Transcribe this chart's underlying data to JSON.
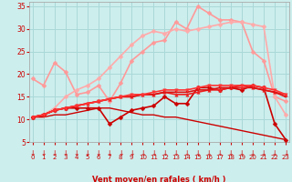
{
  "title": "",
  "xlabel": "Vent moyen/en rafales ( km/h )",
  "xlim": [
    0,
    23
  ],
  "ylim": [
    5,
    36
  ],
  "yticks": [
    5,
    10,
    15,
    20,
    25,
    30,
    35
  ],
  "xticks": [
    0,
    1,
    2,
    3,
    4,
    5,
    6,
    7,
    8,
    9,
    10,
    11,
    12,
    13,
    14,
    15,
    16,
    17,
    18,
    19,
    20,
    21,
    22,
    23
  ],
  "bg_color": "#cceeed",
  "grid_color": "#aad8d8",
  "lines": [
    {
      "y": [
        19.0,
        17.5,
        22.5,
        20.5,
        15.5,
        16.0,
        17.5,
        14.0,
        18.0,
        23.0,
        25.0,
        27.0,
        27.5,
        31.5,
        30.0,
        35.0,
        33.5,
        32.0,
        32.0,
        31.5,
        25.0,
        23.0,
        15.0,
        14.0
      ],
      "color": "#ff9999",
      "lw": 1.2,
      "marker": "D",
      "ms": 2.5
    },
    {
      "y": [
        10.5,
        11.0,
        12.5,
        15.0,
        16.5,
        17.5,
        19.0,
        21.5,
        24.0,
        26.5,
        28.5,
        29.5,
        29.0,
        30.0,
        29.5,
        30.0,
        30.5,
        31.0,
        31.5,
        31.5,
        31.0,
        30.5,
        15.0,
        11.0
      ],
      "color": "#ffaaaa",
      "lw": 1.2,
      "marker": "D",
      "ms": 2.5
    },
    {
      "y": [
        10.5,
        10.5,
        11.0,
        11.0,
        11.5,
        12.0,
        12.5,
        12.5,
        12.0,
        11.5,
        11.0,
        11.0,
        10.5,
        10.5,
        10.0,
        9.5,
        9.0,
        8.5,
        8.0,
        7.5,
        7.0,
        6.5,
        6.0,
        5.5
      ],
      "color": "#cc0000",
      "lw": 1.0,
      "marker": "None",
      "ms": 0
    },
    {
      "y": [
        10.5,
        11.0,
        12.0,
        12.5,
        12.5,
        12.5,
        12.5,
        9.0,
        10.5,
        12.0,
        12.5,
        13.0,
        15.0,
        13.5,
        13.5,
        17.0,
        17.0,
        16.5,
        17.0,
        16.5,
        17.5,
        17.0,
        9.0,
        5.5
      ],
      "color": "#cc0000",
      "lw": 1.2,
      "marker": "D",
      "ms": 2.5
    },
    {
      "y": [
        10.5,
        11.0,
        12.0,
        12.5,
        13.0,
        13.5,
        14.0,
        14.5,
        15.0,
        15.0,
        15.5,
        15.5,
        16.0,
        15.5,
        15.5,
        16.0,
        16.5,
        16.5,
        17.0,
        17.0,
        17.0,
        16.5,
        16.0,
        15.5
      ],
      "color": "#ee2222",
      "lw": 1.2,
      "marker": "^",
      "ms": 2.5
    },
    {
      "y": [
        10.5,
        11.0,
        12.0,
        12.5,
        13.0,
        13.5,
        14.0,
        14.5,
        15.0,
        15.0,
        15.5,
        15.5,
        16.0,
        16.0,
        16.0,
        16.5,
        16.5,
        17.0,
        17.0,
        17.5,
        17.0,
        16.5,
        16.0,
        15.0
      ],
      "color": "#dd1111",
      "lw": 1.2,
      "marker": "s",
      "ms": 2.0
    },
    {
      "y": [
        10.5,
        11.0,
        12.0,
        12.5,
        13.0,
        13.5,
        14.0,
        14.5,
        15.0,
        15.5,
        15.5,
        16.0,
        16.5,
        16.5,
        16.5,
        17.0,
        17.5,
        17.5,
        17.5,
        17.5,
        17.5,
        17.0,
        16.5,
        15.5
      ],
      "color": "#ff3333",
      "lw": 1.2,
      "marker": "v",
      "ms": 2.5
    }
  ],
  "arrow_color": "#cc0000",
  "axis_color": "#888888",
  "tick_color": "#cc0000",
  "label_color": "#cc0000"
}
